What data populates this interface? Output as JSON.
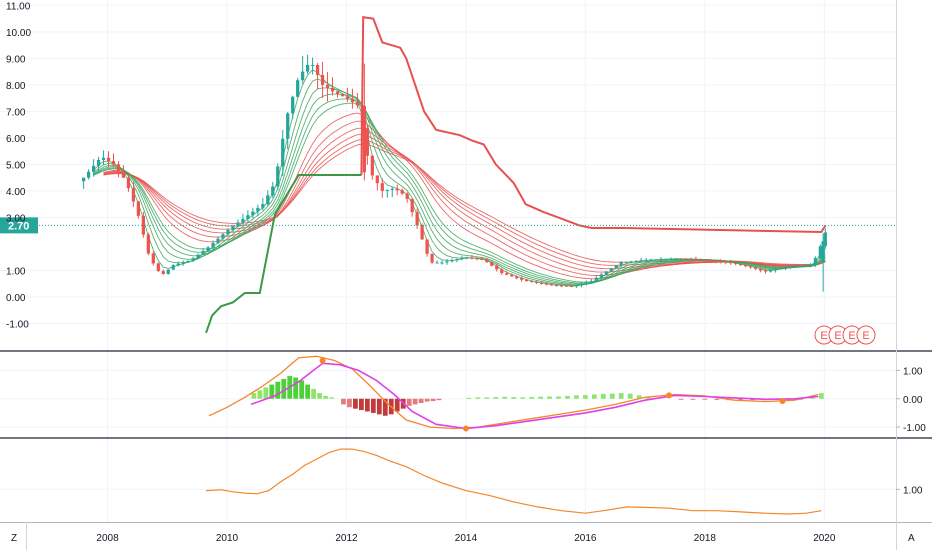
{
  "chart_data": {
    "type": "candlestick",
    "price_label": "2.70",
    "price_line_value": 2.7,
    "x_ticks": [
      "2008",
      "2010",
      "2012",
      "2014",
      "2016",
      "2018",
      "2020"
    ],
    "x_range": [
      2006.2,
      2021.2
    ],
    "panes": [
      {
        "id": "price",
        "yrange": [
          -2.0,
          11.2
        ],
        "yticks": [
          {
            "v": 11,
            "t": "11.00"
          },
          {
            "v": 10,
            "t": "10.00"
          },
          {
            "v": 9,
            "t": "9.00"
          },
          {
            "v": 8,
            "t": "8.00"
          },
          {
            "v": 7,
            "t": "7.00"
          },
          {
            "v": 6,
            "t": "6.00"
          },
          {
            "v": 5,
            "t": "5.00"
          },
          {
            "v": 4,
            "t": "4.00"
          },
          {
            "v": 3,
            "t": "3.00"
          },
          {
            "v": 1,
            "t": "1.00"
          },
          {
            "v": 0,
            "t": "0.00"
          },
          {
            "v": -1,
            "t": "-1.00"
          }
        ]
      },
      {
        "id": "macd",
        "yrange": [
          -1.35,
          1.65
        ],
        "yticks": [
          {
            "v": 1,
            "t": "1.00"
          },
          {
            "v": 0,
            "t": "0.00"
          },
          {
            "v": -1,
            "t": "-1.00"
          }
        ]
      },
      {
        "id": "oscillator",
        "yrange": [
          -0.3,
          3.0
        ],
        "yticks": [
          {
            "v": 1,
            "t": "1.00"
          }
        ]
      }
    ],
    "price_path": [
      [
        2007.6,
        4.5
      ],
      [
        2007.9,
        5.3
      ],
      [
        2008.1,
        5.0
      ],
      [
        2008.3,
        4.4
      ],
      [
        2008.5,
        3.2
      ],
      [
        2008.7,
        1.5
      ],
      [
        2008.9,
        0.8
      ],
      [
        2009.1,
        1.2
      ],
      [
        2009.4,
        1.4
      ],
      [
        2009.7,
        1.9
      ],
      [
        2010.0,
        2.5
      ],
      [
        2010.3,
        3.0
      ],
      [
        2010.6,
        3.5
      ],
      [
        2010.8,
        4.3
      ],
      [
        2011.0,
        6.8
      ],
      [
        2011.2,
        8.3
      ],
      [
        2011.4,
        8.9
      ],
      [
        2011.6,
        8.0
      ],
      [
        2011.8,
        7.7
      ],
      [
        2012.0,
        7.5
      ],
      [
        2012.2,
        7.2
      ],
      [
        2012.4,
        4.7
      ],
      [
        2012.6,
        4.0
      ],
      [
        2012.8,
        4.1
      ],
      [
        2013.0,
        3.8
      ],
      [
        2013.2,
        2.6
      ],
      [
        2013.4,
        1.3
      ],
      [
        2013.6,
        1.3
      ],
      [
        2013.8,
        1.4
      ],
      [
        2014.0,
        1.5
      ],
      [
        2014.3,
        1.4
      ],
      [
        2014.6,
        0.9
      ],
      [
        2015.0,
        0.6
      ],
      [
        2015.4,
        0.45
      ],
      [
        2015.8,
        0.4
      ],
      [
        2016.1,
        0.6
      ],
      [
        2016.3,
        0.9
      ],
      [
        2016.6,
        1.3
      ],
      [
        2017.0,
        1.4
      ],
      [
        2017.5,
        1.45
      ],
      [
        2018.0,
        1.4
      ],
      [
        2018.4,
        1.3
      ],
      [
        2018.8,
        1.1
      ],
      [
        2019.0,
        0.95
      ],
      [
        2019.4,
        1.15
      ],
      [
        2019.8,
        1.2
      ],
      [
        2019.95,
        2.0
      ],
      [
        2020.05,
        2.65
      ]
    ],
    "spike_candles": [
      {
        "x": 2012.3,
        "open": 7.2,
        "close": 4.7,
        "high": 8.8,
        "low": 4.4
      },
      {
        "x": 2019.98,
        "open": 1.3,
        "close": 2.1,
        "high": 2.4,
        "low": 0.2
      }
    ],
    "stop_line_red": [
      [
        2012.25,
        4.6
      ],
      [
        2012.28,
        10.55
      ],
      [
        2012.45,
        10.5
      ],
      [
        2012.6,
        9.6
      ],
      [
        2012.9,
        9.4
      ],
      [
        2013.0,
        9.0
      ],
      [
        2013.3,
        7.0
      ],
      [
        2013.5,
        6.3
      ],
      [
        2013.9,
        6.1
      ],
      [
        2014.1,
        5.9
      ],
      [
        2014.3,
        5.75
      ],
      [
        2014.5,
        5.0
      ],
      [
        2014.8,
        4.3
      ],
      [
        2015.0,
        3.5
      ],
      [
        2015.3,
        3.2
      ],
      [
        2015.6,
        2.95
      ],
      [
        2015.9,
        2.7
      ],
      [
        2016.1,
        2.6
      ],
      [
        2016.6,
        2.6
      ],
      [
        2019.95,
        2.45
      ],
      [
        2020.02,
        2.7
      ]
    ],
    "stop_line_green": [
      [
        2009.65,
        -1.35
      ],
      [
        2009.75,
        -0.7
      ],
      [
        2009.9,
        -0.35
      ],
      [
        2010.1,
        -0.2
      ],
      [
        2010.3,
        0.15
      ],
      [
        2010.55,
        0.15
      ],
      [
        2010.8,
        3.1
      ],
      [
        2011.2,
        4.6
      ],
      [
        2012.25,
        4.6
      ]
    ],
    "macd_line_orange": [
      [
        2009.7,
        -0.6
      ],
      [
        2010.0,
        -0.3
      ],
      [
        2010.3,
        0.05
      ],
      [
        2010.6,
        0.45
      ],
      [
        2010.9,
        0.9
      ],
      [
        2011.2,
        1.45
      ],
      [
        2011.5,
        1.5
      ],
      [
        2011.8,
        1.35
      ],
      [
        2012.1,
        1.05
      ],
      [
        2012.4,
        0.45
      ],
      [
        2012.7,
        -0.2
      ],
      [
        2013.0,
        -0.75
      ],
      [
        2013.4,
        -1.0
      ],
      [
        2013.8,
        -1.05
      ],
      [
        2014.2,
        -1.0
      ],
      [
        2014.8,
        -0.8
      ],
      [
        2015.4,
        -0.6
      ],
      [
        2016.0,
        -0.4
      ],
      [
        2016.5,
        -0.2
      ],
      [
        2017.0,
        0.05
      ],
      [
        2017.5,
        0.15
      ],
      [
        2018.0,
        0.1
      ],
      [
        2018.5,
        -0.05
      ],
      [
        2019.0,
        -0.1
      ],
      [
        2019.5,
        -0.05
      ],
      [
        2019.9,
        0.15
      ]
    ],
    "macd_line_magenta": [
      [
        2010.4,
        -0.2
      ],
      [
        2010.8,
        0.1
      ],
      [
        2011.2,
        0.6
      ],
      [
        2011.6,
        1.25
      ],
      [
        2011.9,
        1.2
      ],
      [
        2012.2,
        1.0
      ],
      [
        2012.5,
        0.65
      ],
      [
        2012.8,
        0.15
      ],
      [
        2013.1,
        -0.45
      ],
      [
        2013.5,
        -0.9
      ],
      [
        2014.0,
        -1.05
      ],
      [
        2014.5,
        -0.95
      ],
      [
        2015.0,
        -0.8
      ],
      [
        2015.5,
        -0.65
      ],
      [
        2016.0,
        -0.5
      ],
      [
        2016.5,
        -0.3
      ],
      [
        2017.0,
        -0.05
      ],
      [
        2017.5,
        0.12
      ],
      [
        2018.0,
        0.08
      ],
      [
        2018.5,
        0.03
      ],
      [
        2019.0,
        -0.02
      ],
      [
        2019.5,
        0.0
      ],
      [
        2019.9,
        0.08
      ]
    ],
    "macd_markers": [
      [
        2011.6,
        1.35
      ],
      [
        2014.0,
        -1.05
      ],
      [
        2017.4,
        0.12
      ],
      [
        2019.3,
        -0.08
      ]
    ],
    "macd_histogram": [
      [
        2010.45,
        0.2
      ],
      [
        2010.55,
        0.3
      ],
      [
        2010.65,
        0.4
      ],
      [
        2010.75,
        0.5
      ],
      [
        2010.85,
        0.6
      ],
      [
        2010.95,
        0.7
      ],
      [
        2011.05,
        0.8
      ],
      [
        2011.15,
        0.75
      ],
      [
        2011.25,
        0.65
      ],
      [
        2011.35,
        0.5
      ],
      [
        2011.45,
        0.35
      ],
      [
        2011.55,
        0.2
      ],
      [
        2011.65,
        0.1
      ],
      [
        2011.75,
        0.05
      ],
      [
        2011.95,
        -0.2
      ],
      [
        2012.05,
        -0.3
      ],
      [
        2012.15,
        -0.35
      ],
      [
        2012.25,
        -0.4
      ],
      [
        2012.35,
        -0.45
      ],
      [
        2012.45,
        -0.5
      ],
      [
        2012.55,
        -0.55
      ],
      [
        2012.65,
        -0.6
      ],
      [
        2012.75,
        -0.55
      ],
      [
        2012.85,
        -0.45
      ],
      [
        2012.95,
        -0.35
      ],
      [
        2013.05,
        -0.25
      ],
      [
        2013.15,
        -0.2
      ],
      [
        2013.25,
        -0.15
      ],
      [
        2013.35,
        -0.1
      ],
      [
        2013.45,
        -0.08
      ],
      [
        2013.55,
        -0.05
      ],
      [
        2014.05,
        0.03
      ],
      [
        2014.2,
        0.05
      ],
      [
        2014.35,
        0.05
      ],
      [
        2014.5,
        0.06
      ],
      [
        2014.65,
        0.07
      ],
      [
        2014.8,
        0.06
      ],
      [
        2014.95,
        0.05
      ],
      [
        2015.1,
        0.06
      ],
      [
        2015.25,
        0.07
      ],
      [
        2015.4,
        0.08
      ],
      [
        2015.55,
        0.08
      ],
      [
        2015.7,
        0.1
      ],
      [
        2015.85,
        0.12
      ],
      [
        2016.0,
        0.13
      ],
      [
        2016.15,
        0.15
      ],
      [
        2016.3,
        0.17
      ],
      [
        2016.45,
        0.18
      ],
      [
        2016.6,
        0.2
      ],
      [
        2016.75,
        0.18
      ],
      [
        2016.9,
        0.12
      ],
      [
        2017.05,
        0.06
      ],
      [
        2017.6,
        -0.02
      ],
      [
        2017.8,
        -0.03
      ],
      [
        2018.0,
        -0.03
      ],
      [
        2018.2,
        -0.04
      ],
      [
        2018.4,
        -0.05
      ],
      [
        2018.6,
        -0.06
      ],
      [
        2018.8,
        -0.05
      ],
      [
        2019.0,
        -0.05
      ],
      [
        2019.2,
        -0.04
      ],
      [
        2019.4,
        -0.03
      ],
      [
        2019.6,
        -0.02
      ],
      [
        2019.8,
        0.1
      ],
      [
        2019.95,
        0.2
      ]
    ],
    "oscillator_line": [
      [
        2009.65,
        0.95
      ],
      [
        2009.9,
        0.98
      ],
      [
        2010.1,
        0.9
      ],
      [
        2010.3,
        0.85
      ],
      [
        2010.5,
        0.82
      ],
      [
        2010.7,
        0.95
      ],
      [
        2010.9,
        1.3
      ],
      [
        2011.1,
        1.6
      ],
      [
        2011.3,
        1.95
      ],
      [
        2011.5,
        2.2
      ],
      [
        2011.7,
        2.45
      ],
      [
        2011.9,
        2.6
      ],
      [
        2012.1,
        2.6
      ],
      [
        2012.3,
        2.5
      ],
      [
        2012.5,
        2.35
      ],
      [
        2012.7,
        2.15
      ],
      [
        2013.0,
        1.9
      ],
      [
        2013.3,
        1.55
      ],
      [
        2013.6,
        1.25
      ],
      [
        2014.0,
        0.95
      ],
      [
        2014.4,
        0.75
      ],
      [
        2014.8,
        0.5
      ],
      [
        2015.2,
        0.3
      ],
      [
        2015.6,
        0.15
      ],
      [
        2016.0,
        0.05
      ],
      [
        2016.3,
        0.15
      ],
      [
        2016.7,
        0.3
      ],
      [
        2017.0,
        0.28
      ],
      [
        2017.4,
        0.25
      ],
      [
        2017.8,
        0.15
      ],
      [
        2018.2,
        0.15
      ],
      [
        2018.6,
        0.1
      ],
      [
        2019.0,
        0.05
      ],
      [
        2019.4,
        0.02
      ],
      [
        2019.7,
        0.05
      ],
      [
        2019.95,
        0.15
      ]
    ],
    "earnings_markers": [
      "E",
      "E",
      "E",
      "E"
    ],
    "corner_labels": {
      "left": "Z",
      "right": "A"
    }
  }
}
